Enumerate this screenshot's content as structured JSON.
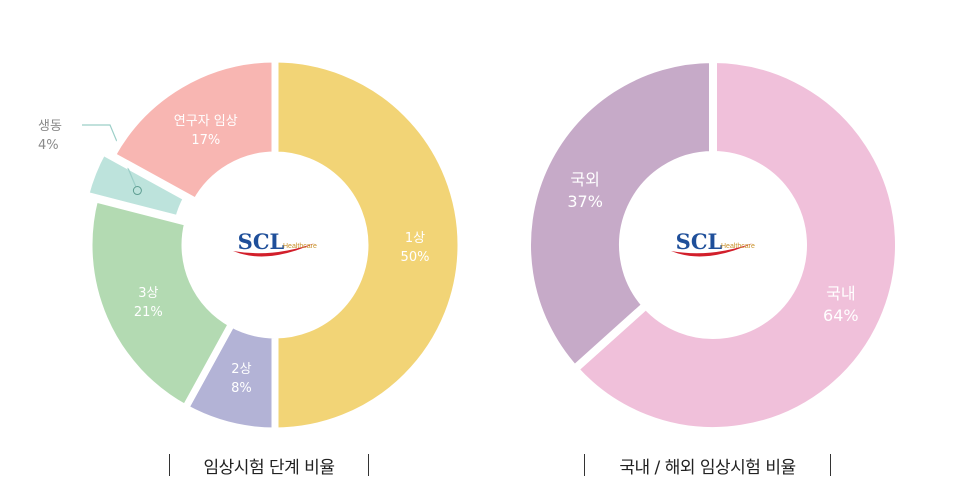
{
  "chart_data": [
    {
      "type": "pie",
      "title": "임상시험 단계 비율",
      "center_logo": {
        "brand": "SCL",
        "sub": "Healthcare"
      },
      "slices": [
        {
          "label": "1상",
          "value": 50,
          "value_label": "50%",
          "color": "#f2d476"
        },
        {
          "label": "2상",
          "value": 8,
          "value_label": "8%",
          "color": "#b3b3d6"
        },
        {
          "label": "3상",
          "value": 21,
          "value_label": "21%",
          "color": "#b3dab2"
        },
        {
          "label": "생동",
          "value": 4,
          "value_label": "4%",
          "color": "#bde3dc"
        },
        {
          "label": "연구자 임상",
          "value": 17,
          "value_label": "17%",
          "color": "#f8b6b2"
        }
      ]
    },
    {
      "type": "pie",
      "title": "국내 / 해외 임상시험 비율",
      "center_logo": {
        "brand": "SCL",
        "sub": "Healthcare"
      },
      "slices": [
        {
          "label": "국내",
          "value": 64,
          "value_label": "64%",
          "color": "#f0c0da"
        },
        {
          "label": "국외",
          "value": 37,
          "value_label": "37%",
          "color": "#c6aac8"
        }
      ]
    }
  ],
  "colors": {
    "logo_text": "#1f4f9a",
    "logo_swoosh": "#d21f2b",
    "logo_sub": "#c8902a",
    "callout": "#8a8a8a",
    "leader": "#9ccfc8"
  }
}
